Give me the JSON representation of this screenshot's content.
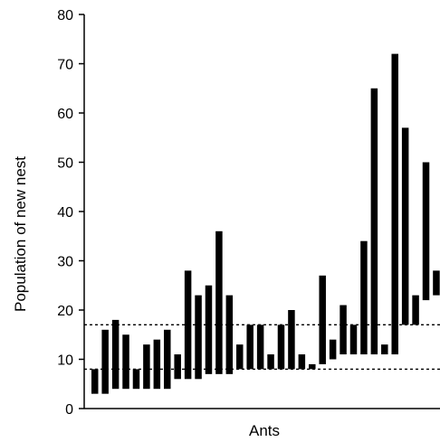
{
  "chart_data": {
    "type": "bar",
    "subtype": "floating-range",
    "xlabel": "Ants",
    "ylabel": "Population of new nest",
    "ylim": [
      0,
      80
    ],
    "yticks": [
      0,
      10,
      20,
      30,
      40,
      50,
      60,
      70,
      80
    ],
    "grid": false,
    "legend": "none",
    "reference_lines": [
      {
        "y": 8,
        "style": "dotted"
      },
      {
        "y": 17,
        "style": "dotted"
      }
    ],
    "bars": [
      {
        "low": 3,
        "high": 8
      },
      {
        "low": 3,
        "high": 16
      },
      {
        "low": 4,
        "high": 18
      },
      {
        "low": 4,
        "high": 15
      },
      {
        "low": 4,
        "high": 8
      },
      {
        "low": 4,
        "high": 13
      },
      {
        "low": 4,
        "high": 14
      },
      {
        "low": 4,
        "high": 16
      },
      {
        "low": 6,
        "high": 11
      },
      {
        "low": 6,
        "high": 28
      },
      {
        "low": 6,
        "high": 23
      },
      {
        "low": 7,
        "high": 25
      },
      {
        "low": 7,
        "high": 36
      },
      {
        "low": 7,
        "high": 23
      },
      {
        "low": 8,
        "high": 13
      },
      {
        "low": 8,
        "high": 17
      },
      {
        "low": 8,
        "high": 17
      },
      {
        "low": 8,
        "high": 11
      },
      {
        "low": 8,
        "high": 17
      },
      {
        "low": 8,
        "high": 20
      },
      {
        "low": 8,
        "high": 11
      },
      {
        "low": 8,
        "high": 9
      },
      {
        "low": 9,
        "high": 27
      },
      {
        "low": 10,
        "high": 14
      },
      {
        "low": 11,
        "high": 21
      },
      {
        "low": 11,
        "high": 17
      },
      {
        "low": 11,
        "high": 34
      },
      {
        "low": 11,
        "high": 65
      },
      {
        "low": 11,
        "high": 13
      },
      {
        "low": 11,
        "high": 72
      },
      {
        "low": 17,
        "high": 57
      },
      {
        "low": 17,
        "high": 23
      },
      {
        "low": 22,
        "high": 50
      },
      {
        "low": 23,
        "high": 28
      }
    ],
    "colors": {
      "bar": "#000000",
      "axis": "#000000",
      "reference_line": "#000000"
    }
  }
}
